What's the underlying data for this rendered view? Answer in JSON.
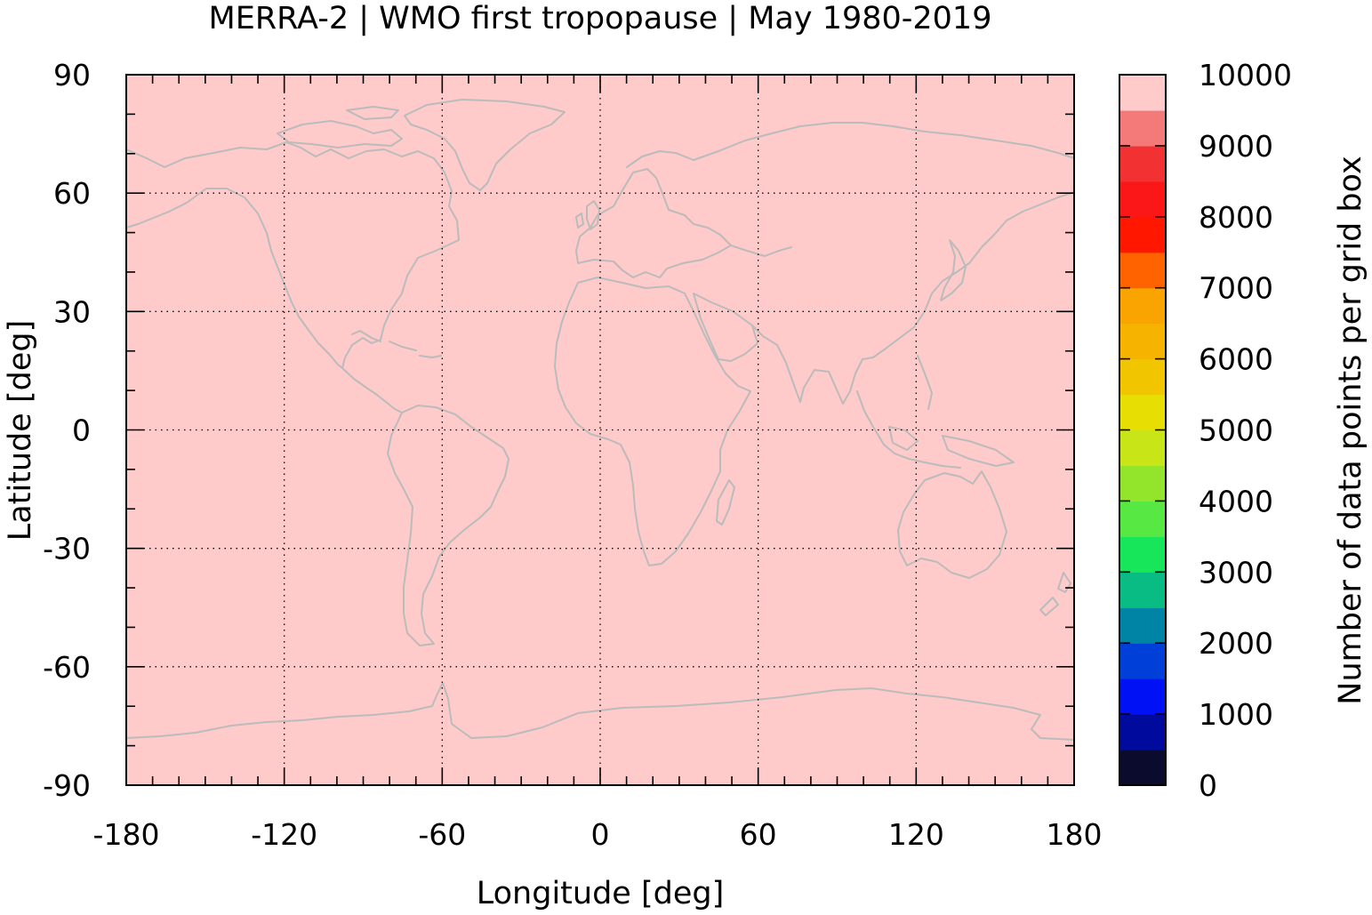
{
  "chart_data": {
    "type": "heatmap",
    "title": "MERRA-2 | WMO first tropopause | May 1980-2019",
    "xlabel": "Longitude [deg]",
    "ylabel": "Latitude [deg]",
    "xlim": [
      -180,
      180
    ],
    "ylim": [
      -90,
      90
    ],
    "x_ticks": [
      -180,
      -120,
      -60,
      0,
      60,
      120,
      180
    ],
    "x_tick_labels": [
      "-180",
      "-120",
      "-60",
      "0",
      "60",
      "120",
      "180"
    ],
    "y_ticks": [
      90,
      60,
      30,
      0,
      -30,
      -60,
      -90
    ],
    "y_tick_labels": [
      "90",
      "60",
      "30",
      "0",
      "-30",
      "-60",
      "-90"
    ],
    "grid": true,
    "field_value": 10000,
    "field_color": "#ffcaca",
    "coastline_color": "#bbbbbb",
    "colorbar": {
      "label": "Number of data points per grid box",
      "min": 0,
      "max": 10000,
      "ticks": [
        0,
        1000,
        2000,
        3000,
        4000,
        5000,
        6000,
        7000,
        8000,
        9000,
        10000
      ],
      "tick_labels": [
        "0",
        "1000",
        "2000",
        "3000",
        "4000",
        "5000",
        "6000",
        "7000",
        "8000",
        "9000",
        "10000"
      ],
      "colors": [
        "#0b0b2e",
        "#000a9c",
        "#0012f5",
        "#0040d8",
        "#0084a6",
        "#09bc84",
        "#17e65a",
        "#57e843",
        "#93e52c",
        "#c8e518",
        "#e7de04",
        "#f1c600",
        "#f6b300",
        "#f9a400",
        "#ff6300",
        "#ff1700",
        "#fb1717",
        "#f23232",
        "#f47a7a",
        "#ffcaca"
      ]
    }
  }
}
